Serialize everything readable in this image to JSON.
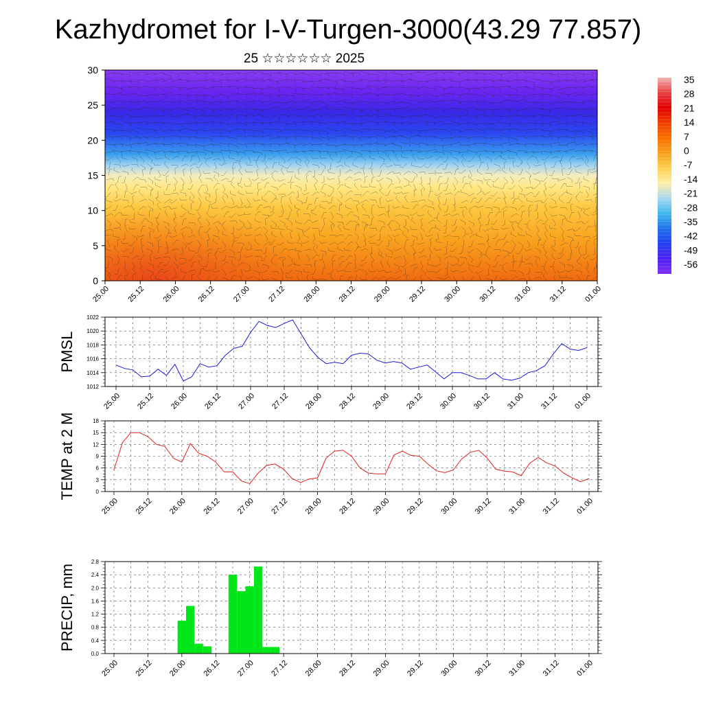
{
  "title": "Kazhydromet for I-V-Turgen-3000(43.29 77.857)",
  "subtitle": "25 ☆☆☆☆☆☆ 2025",
  "x_tick_labels": [
    "25.00",
    "25.12",
    "26.00",
    "26.12",
    "27.00",
    "27.12",
    "28.00",
    "28.12",
    "29.00",
    "29.12",
    "30.00",
    "30.12",
    "31.00",
    "31.12",
    "01.00"
  ],
  "colors": {
    "pmsl_line": "#1a1ad8",
    "temp_line": "#e02020",
    "precip_bar": "#00e61a"
  },
  "chart_data": [
    {
      "type": "heatmap",
      "name": "upper-air-temperature-wind",
      "ylim": [
        0,
        30
      ],
      "y_ticks": [
        0,
        5,
        10,
        15,
        20,
        25,
        30
      ],
      "x_tick_labels": [
        "25.00",
        "25.12",
        "26.00",
        "26.12",
        "27.00",
        "27.12",
        "28.00",
        "28.12",
        "29.00",
        "29.12",
        "30.00",
        "30.12",
        "31.00",
        "31.12",
        "01.00"
      ],
      "colorbar_labels": [
        "35",
        "28",
        "21",
        "14",
        "7",
        "0",
        "-7",
        "-14",
        "-21",
        "-28",
        "-35",
        "-42",
        "-49",
        "-56"
      ],
      "colorbar_colors": [
        "#f4b4b4",
        "#e84040",
        "#e00000",
        "#f04000",
        "#f87000",
        "#f8a020",
        "#fdd050",
        "#fff0a8",
        "#a8d8f0",
        "#40b8f0",
        "#2070e8",
        "#2040f0",
        "#5020f0",
        "#8030f0"
      ]
    },
    {
      "type": "line",
      "name": "PMSL",
      "ylabel": "PMSL",
      "ylim": [
        1012,
        1022
      ],
      "y_ticks": [
        1012,
        1014,
        1016,
        1018,
        1020,
        1022
      ],
      "x_tick_labels": [
        "25.00",
        "25.12",
        "26.00",
        "26.12",
        "27.00",
        "27.12",
        "28.00",
        "28.12",
        "29.00",
        "29.12",
        "30.00",
        "30.12",
        "31.00",
        "31.12",
        "01.00"
      ],
      "values": [
        1015.1,
        1014.6,
        1014.4,
        1013.4,
        1013.5,
        1014.5,
        1013.6,
        1015.2,
        1012.8,
        1013.4,
        1015.3,
        1014.8,
        1015.0,
        1016.5,
        1017.5,
        1017.8,
        1019.8,
        1021.4,
        1020.8,
        1020.5,
        1021.1,
        1021.6,
        1019.6,
        1017.6,
        1016.2,
        1015.3,
        1015.5,
        1015.3,
        1016.5,
        1016.8,
        1016.7,
        1015.8,
        1015.4,
        1015.6,
        1015.4,
        1014.5,
        1014.8,
        1015.1,
        1014.1,
        1013.1,
        1014.0,
        1014.0,
        1013.6,
        1013.1,
        1013.1,
        1014.0,
        1013.1,
        1012.9,
        1013.2,
        1014.0,
        1014.3,
        1015.0,
        1016.7,
        1018.2,
        1017.4,
        1017.2,
        1017.6
      ]
    },
    {
      "type": "line",
      "name": "TEMP at 2 M",
      "ylabel": "TEMP at 2 M",
      "ylim": [
        0,
        18
      ],
      "y_ticks": [
        0,
        3,
        6,
        9,
        12,
        15,
        18
      ],
      "x_tick_labels": [
        "25.00",
        "25.12",
        "26.00",
        "26.12",
        "27.00",
        "27.12",
        "28.00",
        "28.12",
        "29.00",
        "29.12",
        "30.00",
        "30.12",
        "31.00",
        "31.12",
        "01.00"
      ],
      "values": [
        5.5,
        12.5,
        15.0,
        15.0,
        14.0,
        12.0,
        11.5,
        8.5,
        7.5,
        12.2,
        9.7,
        9.0,
        7.5,
        5.0,
        5.0,
        2.7,
        2.0,
        4.7,
        6.7,
        7.0,
        5.7,
        3.3,
        2.3,
        3.2,
        3.5,
        8.5,
        10.3,
        10.5,
        9.0,
        6.0,
        4.7,
        4.5,
        4.5,
        9.3,
        10.3,
        9.2,
        9.0,
        7.0,
        5.3,
        4.8,
        5.5,
        8.3,
        10.0,
        10.5,
        8.5,
        5.7,
        5.2,
        5.0,
        4.0,
        7.2,
        8.7,
        7.3,
        6.5,
        4.7,
        3.5,
        2.5,
        3.3
      ]
    },
    {
      "type": "bar",
      "name": "PRECIP, mm",
      "ylabel": "PRECIP, mm",
      "ylim": [
        0,
        2.8
      ],
      "y_ticks": [
        "0.0",
        "0.4",
        "0.8",
        "1.2",
        "1.6",
        "2.0",
        "2.4",
        "2.8"
      ],
      "x_tick_labels": [
        "25.00",
        "25.12",
        "26.00",
        "26.12",
        "27.00",
        "27.12",
        "28.00",
        "28.12",
        "29.00",
        "29.12",
        "30.00",
        "30.12",
        "31.00",
        "31.12",
        "01.00"
      ],
      "values": [
        0,
        0,
        0,
        0,
        0,
        0,
        0,
        0,
        1.0,
        1.45,
        0.3,
        0.22,
        0.0,
        0.0,
        2.4,
        1.9,
        2.05,
        2.65,
        0.2,
        0.2,
        0,
        0,
        0,
        0,
        0,
        0,
        0,
        0,
        0,
        0,
        0,
        0,
        0,
        0,
        0,
        0,
        0,
        0,
        0,
        0,
        0,
        0,
        0,
        0,
        0,
        0,
        0,
        0,
        0,
        0,
        0,
        0,
        0,
        0,
        0,
        0,
        0
      ]
    }
  ]
}
